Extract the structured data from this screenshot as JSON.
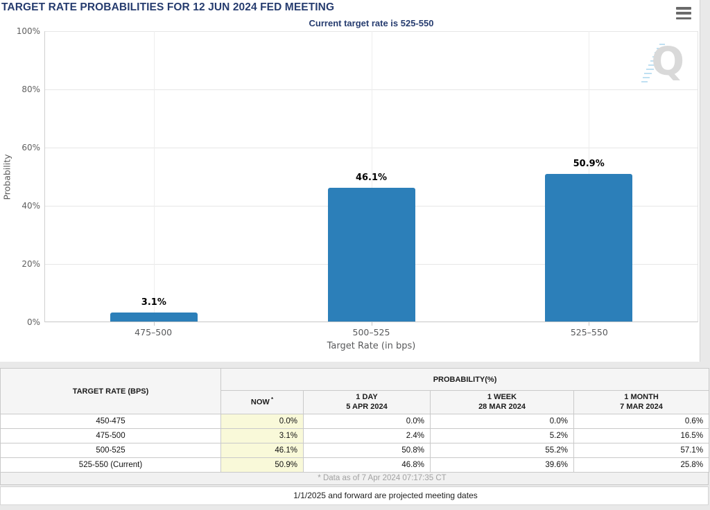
{
  "header": {
    "title": "TARGET RATE PROBABILITIES FOR 12 JUN 2024 FED MEETING",
    "menu_icon": "hamburger-icon"
  },
  "chart_data": {
    "type": "bar",
    "title": "TARGET RATE PROBABILITIES FOR 12 JUN 2024 FED MEETING",
    "subtitle": "Current target rate is 525-550",
    "categories": [
      "475–500",
      "500–525",
      "525–550"
    ],
    "values": [
      3.1,
      46.1,
      50.9
    ],
    "value_labels": [
      "3.1%",
      "46.1%",
      "50.9%"
    ],
    "xlabel": "Target Rate (in bps)",
    "ylabel": "Probability",
    "ylim": [
      0,
      100
    ],
    "yticks": [
      "0%",
      "20%",
      "40%",
      "60%",
      "80%",
      "100%"
    ],
    "grid": true,
    "legend": "none",
    "bar_color": "#2c7fb9"
  },
  "watermark": {
    "letter": "Q"
  },
  "table": {
    "row_header": "TARGET RATE (BPS)",
    "group_header": "PROBABILITY(%)",
    "now_asterisk": "*",
    "columns": [
      {
        "label": "NOW",
        "sub": ""
      },
      {
        "label": "1 DAY",
        "sub": "5 APR 2024"
      },
      {
        "label": "1 WEEK",
        "sub": "28 MAR 2024"
      },
      {
        "label": "1 MONTH",
        "sub": "7 MAR 2024"
      }
    ],
    "rows": [
      {
        "rate": "450-475",
        "now": "0.0%",
        "day": "0.0%",
        "week": "0.0%",
        "month": "0.6%"
      },
      {
        "rate": "475-500",
        "now": "3.1%",
        "day": "2.4%",
        "week": "5.2%",
        "month": "16.5%"
      },
      {
        "rate": "500-525",
        "now": "46.1%",
        "day": "50.8%",
        "week": "55.2%",
        "month": "57.1%"
      },
      {
        "rate": "525-550 (Current)",
        "now": "50.9%",
        "day": "46.8%",
        "week": "39.6%",
        "month": "25.8%"
      }
    ],
    "footnote": "* Data as of 7 Apr 2024 07:17:35 CT"
  },
  "footer_note": "1/1/2025 and forward are projected meeting dates",
  "colors": {
    "bar": "#2c7fb9",
    "title_navy": "#263c6f",
    "now_highlight": "#f9f9d9",
    "header_bg": "#f5f5f5",
    "page_bg": "#e9e9e9"
  }
}
